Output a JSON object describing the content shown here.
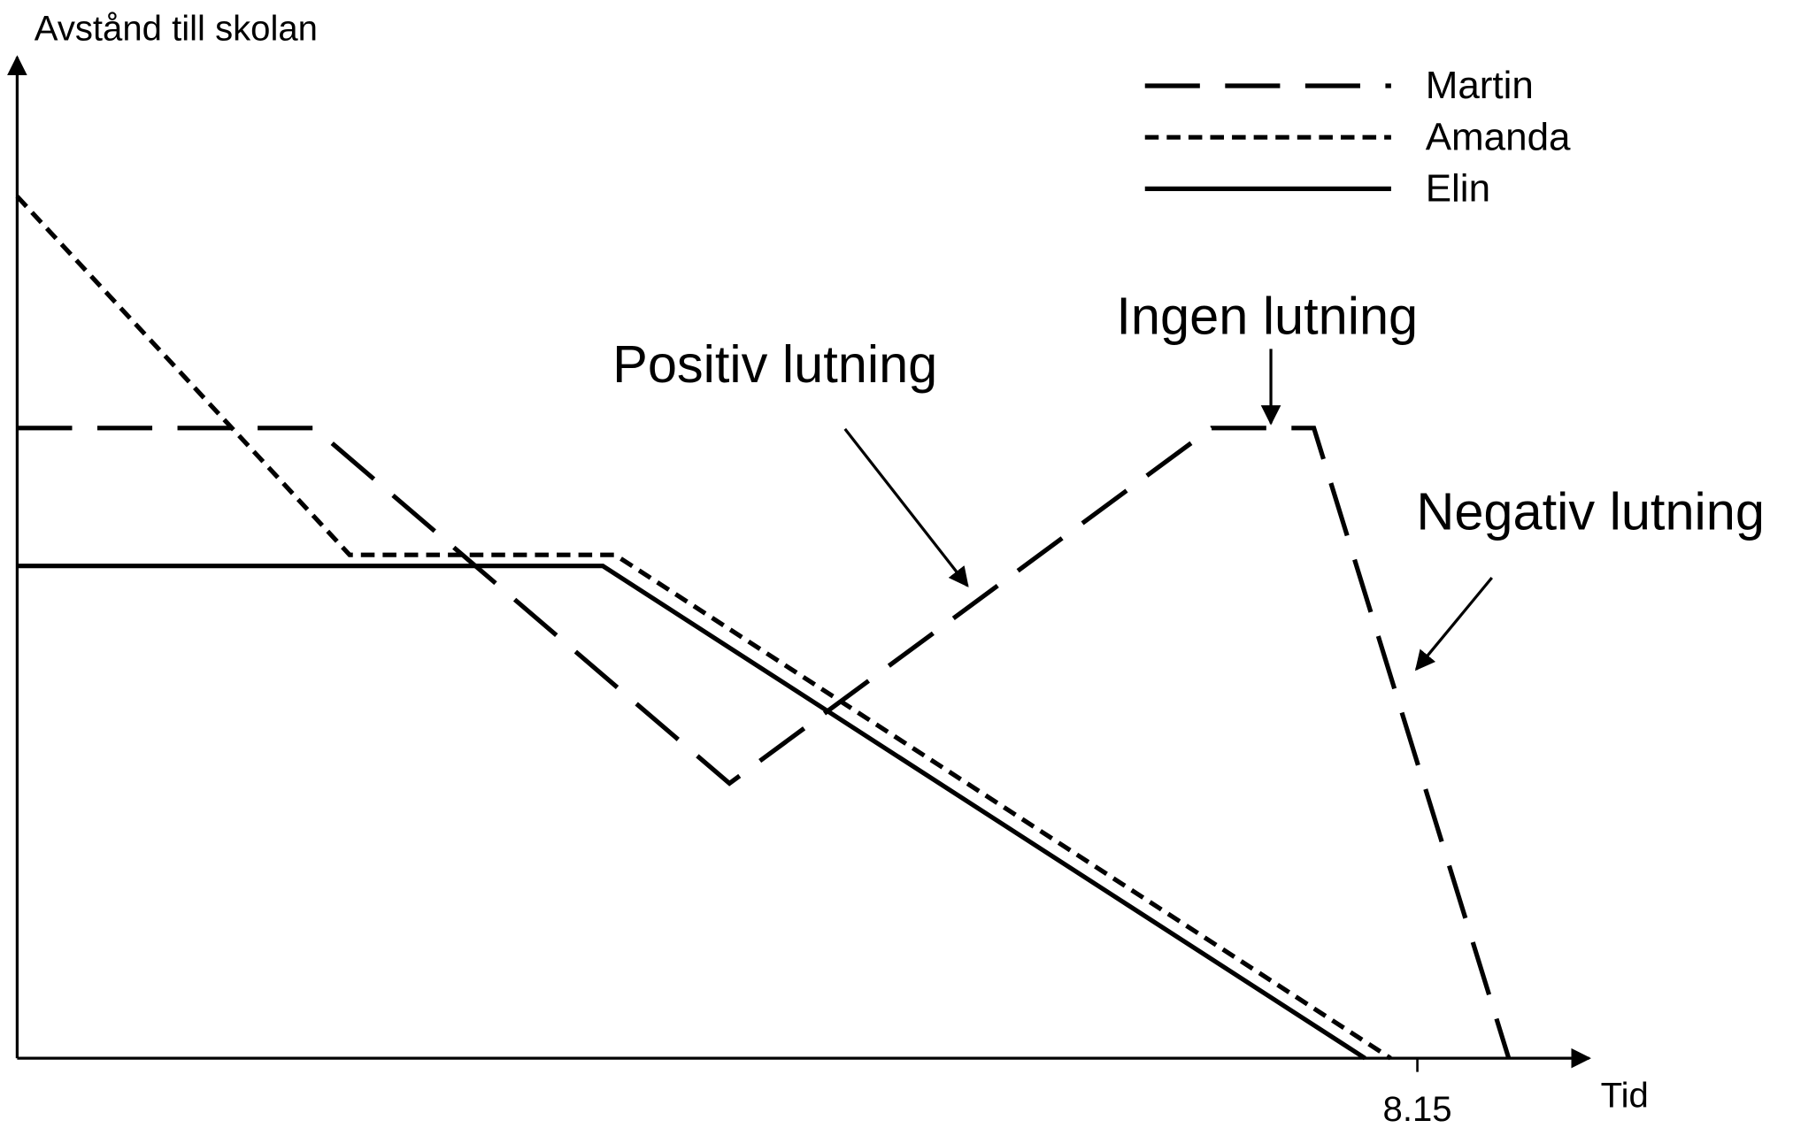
{
  "chart_data": {
    "type": "line",
    "y_label": "Avstånd till skolan",
    "x_label": "Tid",
    "xlim": [
      7.0,
      8.293
    ],
    "ylim": [
      0,
      100
    ],
    "xticks": [
      8.15
    ],
    "legend": "upper right",
    "series": [
      {
        "name": "Martin",
        "color": "#000000",
        "style": "dashed",
        "x": [
          7.0,
          7.244,
          7.585,
          7.981,
          8.065,
          8.225
        ],
        "values": [
          62.6,
          62.6,
          27.3,
          62.6,
          62.6,
          0
        ]
      },
      {
        "name": "Amanda",
        "color": "#000000",
        "style": "dotted",
        "x": [
          7.0,
          7.273,
          7.491,
          8.128
        ],
        "values": [
          85.6,
          50,
          50,
          0
        ]
      },
      {
        "name": "Elin",
        "color": "#000000",
        "style": "solid",
        "x": [
          7.0,
          7.481,
          8.107
        ],
        "values": [
          48.9,
          48.9,
          0
        ]
      }
    ],
    "annotations": [
      "Positiv lutning",
      "Ingen lutning",
      "Negativ lutning"
    ]
  }
}
